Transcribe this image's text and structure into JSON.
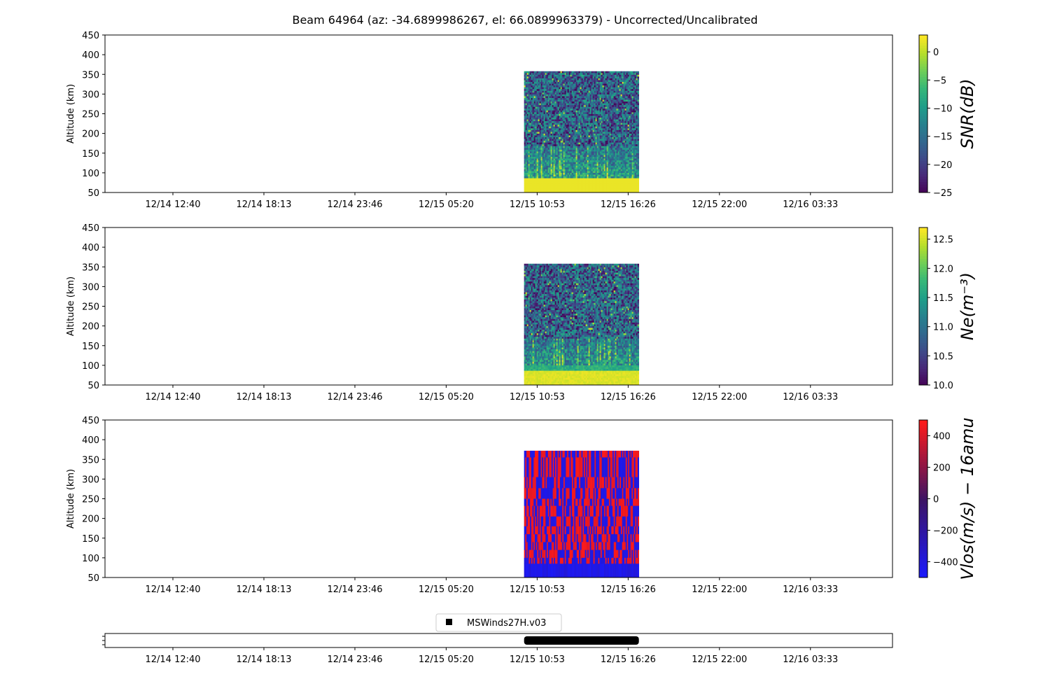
{
  "figure": {
    "title": "Beam 64964 (az: -34.6899986267, el: 66.0899963379) - Uncorrected/Uncalibrated"
  },
  "chart_data": [
    {
      "type": "heatmap",
      "name": "snr",
      "ylabel": "Altitude (km)",
      "ylim": [
        50,
        450
      ],
      "yticks": [
        "50",
        "100",
        "150",
        "200",
        "250",
        "300",
        "350",
        "400",
        "450"
      ],
      "xticks": [
        "12/14 12:40",
        "12/14 18:13",
        "12/14 23:46",
        "12/15 05:20",
        "12/15 10:53",
        "12/15 16:26",
        "12/15 22:00",
        "12/16 03:33"
      ],
      "data_x_range": [
        "12/15 10:05",
        "12/15 17:05"
      ],
      "data_y_range": [
        50,
        358
      ],
      "colormap": "viridis",
      "colorbar_label": "SNR(dB)",
      "colorbar_range": [
        -25,
        3
      ],
      "colorbar_ticks": [
        "0",
        "−5",
        "−10",
        "−15",
        "−20",
        "−25"
      ]
    },
    {
      "type": "heatmap",
      "name": "ne",
      "ylabel": "Altitude (km)",
      "ylim": [
        50,
        450
      ],
      "yticks": [
        "50",
        "100",
        "150",
        "200",
        "250",
        "300",
        "350",
        "400",
        "450"
      ],
      "xticks": [
        "12/14 12:40",
        "12/14 18:13",
        "12/14 23:46",
        "12/15 05:20",
        "12/15 10:53",
        "12/15 16:26",
        "12/15 22:00",
        "12/16 03:33"
      ],
      "data_x_range": [
        "12/15 10:05",
        "12/15 17:05"
      ],
      "data_y_range": [
        50,
        358
      ],
      "colormap": "viridis",
      "colorbar_label": "Ne(m⁻³)",
      "colorbar_range": [
        10.0,
        12.7
      ],
      "colorbar_ticks": [
        "12.5",
        "12.0",
        "11.5",
        "11.0",
        "10.5",
        "10.0"
      ]
    },
    {
      "type": "heatmap",
      "name": "vlos",
      "ylabel": "Altitude (km)",
      "ylim": [
        50,
        450
      ],
      "yticks": [
        "50",
        "100",
        "150",
        "200",
        "250",
        "300",
        "350",
        "400",
        "450"
      ],
      "xticks": [
        "12/14 12:40",
        "12/14 18:13",
        "12/14 23:46",
        "12/15 05:20",
        "12/15 10:53",
        "12/15 16:26",
        "12/15 22:00",
        "12/16 03:33"
      ],
      "data_x_range": [
        "12/15 10:05",
        "12/15 17:05"
      ],
      "data_y_range": [
        50,
        372
      ],
      "colormap": "blue-red",
      "colorbar_label": "Vlos(m/s) − 16amu",
      "colorbar_range": [
        -500,
        500
      ],
      "colorbar_ticks": [
        "400",
        "200",
        "0",
        "−200",
        "−400"
      ]
    }
  ],
  "coverage": {
    "legend_label": "MSWinds27H.v03",
    "bar_range": [
      "12/15 10:05",
      "12/15 17:05"
    ],
    "xticks": [
      "12/14 12:40",
      "12/14 18:13",
      "12/14 23:46",
      "12/15 05:20",
      "12/15 10:53",
      "12/15 16:26",
      "12/15 22:00",
      "12/16 03:33"
    ]
  },
  "colors": {
    "axis": "#000000",
    "coverage_bar": "#000000",
    "vlos_blue": "#1a1aff",
    "vlos_red": "#ff1a1a"
  }
}
